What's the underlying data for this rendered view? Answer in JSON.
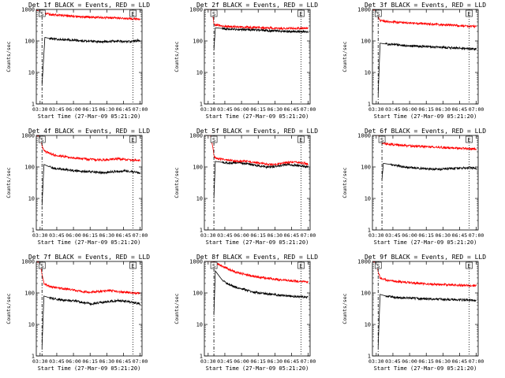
{
  "colors": {
    "events": "#000000",
    "lld": "#ff0000",
    "axes": "#000000",
    "background": "#ffffff"
  },
  "common": {
    "ylabel": "Counts/sec",
    "xlabel": "Start Time (27-Mar-09 05:21:20)",
    "y_scale": "log",
    "ylim": [
      1,
      1000
    ],
    "yticks": [
      "1",
      "10",
      "100",
      "1000"
    ],
    "xlim": [
      "03:22",
      "07:04"
    ],
    "xticks": [
      "03:30",
      "03:45",
      "06:00",
      "06:15",
      "06:30",
      "06:45",
      "07:00"
    ],
    "start_marker": "S",
    "end_marker": "E",
    "end_time": "06:45"
  },
  "chart_data": [
    {
      "type": "line",
      "title": "Det 1f BLACK = Events, RED = LLD",
      "start_time": "03:34",
      "series": [
        {
          "name": "Events",
          "color": "#000000",
          "x": [
            "03:34",
            "03:40",
            "03:50",
            "04:00",
            "04:15",
            "04:30",
            "04:45",
            "05:00",
            "05:15",
            "05:30",
            "05:45",
            "06:00",
            "06:15",
            "06:30",
            "06:45",
            "06:55",
            "07:00"
          ],
          "y": [
            4,
            130,
            120,
            115,
            110,
            108,
            105,
            100,
            98,
            95,
            95,
            97,
            100,
            95,
            95,
            105,
            95
          ]
        },
        {
          "name": "LLD",
          "color": "#ff0000",
          "x": [
            "03:22",
            "03:30",
            "03:34",
            "03:40",
            "03:50",
            "04:00",
            "04:15",
            "04:30",
            "04:45",
            "05:00",
            "05:15",
            "05:30",
            "05:45",
            "06:00",
            "06:15",
            "06:30",
            "06:45",
            "06:55",
            "07:00"
          ],
          "y": [
            950,
            900,
            800,
            750,
            700,
            680,
            650,
            620,
            600,
            580,
            570,
            560,
            550,
            540,
            530,
            520,
            500,
            480,
            470
          ]
        }
      ]
    },
    {
      "type": "line",
      "title": "Det 2f BLACK = Events, RED = LLD",
      "start_time": "03:42",
      "series": [
        {
          "name": "Events",
          "color": "#000000",
          "x": [
            "03:42",
            "03:45",
            "04:00",
            "04:15",
            "04:30",
            "04:45",
            "05:00",
            "05:15",
            "05:30",
            "05:45",
            "06:00",
            "06:15",
            "06:30",
            "06:45",
            "07:00"
          ],
          "y": [
            50,
            260,
            250,
            240,
            235,
            230,
            225,
            220,
            215,
            210,
            205,
            200,
            200,
            200,
            190
          ]
        },
        {
          "name": "LLD",
          "color": "#ff0000",
          "x": [
            "03:22",
            "03:35",
            "03:40",
            "03:42",
            "03:45",
            "04:00",
            "04:15",
            "04:30",
            "04:45",
            "05:00",
            "05:15",
            "05:30",
            "05:45",
            "06:00",
            "06:15",
            "06:30",
            "06:45",
            "07:00"
          ],
          "y": [
            1000,
            1000,
            600,
            360,
            320,
            300,
            290,
            280,
            275,
            270,
            265,
            260,
            255,
            250,
            250,
            250,
            250,
            260
          ]
        }
      ]
    },
    {
      "type": "line",
      "title": "Det 3f BLACK = Events, RED = LLD",
      "start_time": "03:34",
      "series": [
        {
          "name": "Events",
          "color": "#000000",
          "x": [
            "03:34",
            "03:38",
            "03:50",
            "04:00",
            "04:15",
            "04:30",
            "04:45",
            "05:00",
            "05:15",
            "05:30",
            "05:45",
            "06:00",
            "06:15",
            "06:30",
            "06:45",
            "07:00"
          ],
          "y": [
            2,
            85,
            80,
            78,
            75,
            72,
            70,
            68,
            66,
            64,
            63,
            62,
            60,
            58,
            56,
            55
          ]
        },
        {
          "name": "LLD",
          "color": "#ff0000",
          "x": [
            "03:22",
            "03:30",
            "03:34",
            "03:38",
            "03:50",
            "04:00",
            "04:15",
            "04:30",
            "04:45",
            "05:00",
            "05:15",
            "05:30",
            "05:45",
            "06:00",
            "06:15",
            "06:30",
            "06:45",
            "07:00"
          ],
          "y": [
            1000,
            900,
            600,
            450,
            420,
            400,
            390,
            380,
            370,
            360,
            350,
            340,
            330,
            320,
            310,
            300,
            290,
            285
          ]
        }
      ]
    },
    {
      "type": "line",
      "title": "Det 4f BLACK = Events, RED = LLD",
      "start_time": "03:34",
      "series": [
        {
          "name": "Events",
          "color": "#000000",
          "x": [
            "03:34",
            "03:38",
            "03:50",
            "04:00",
            "04:15",
            "04:30",
            "04:45",
            "05:00",
            "05:15",
            "05:30",
            "05:45",
            "06:00",
            "06:15",
            "06:30",
            "06:45",
            "07:00"
          ],
          "y": [
            6,
            120,
            100,
            90,
            85,
            80,
            75,
            72,
            70,
            68,
            66,
            70,
            72,
            75,
            70,
            65
          ]
        },
        {
          "name": "LLD",
          "color": "#ff0000",
          "x": [
            "03:22",
            "03:30",
            "03:34",
            "03:38",
            "03:50",
            "04:00",
            "04:15",
            "04:30",
            "04:45",
            "05:00",
            "05:15",
            "05:30",
            "05:45",
            "06:00",
            "06:15",
            "06:30",
            "06:45",
            "07:00"
          ],
          "y": [
            1000,
            900,
            500,
            320,
            270,
            240,
            220,
            200,
            190,
            180,
            175,
            170,
            170,
            175,
            180,
            170,
            165,
            160
          ]
        }
      ]
    },
    {
      "type": "line",
      "title": "Det 5f BLACK = Events, RED = LLD",
      "start_time": "03:42",
      "series": [
        {
          "name": "Events",
          "color": "#000000",
          "x": [
            "03:42",
            "03:45",
            "04:00",
            "04:15",
            "04:30",
            "04:45",
            "05:00",
            "05:15",
            "05:30",
            "05:45",
            "06:00",
            "06:15",
            "06:30",
            "06:45",
            "07:00"
          ],
          "y": [
            10,
            150,
            140,
            130,
            140,
            130,
            120,
            110,
            100,
            100,
            110,
            120,
            115,
            110,
            100
          ]
        },
        {
          "name": "LLD",
          "color": "#ff0000",
          "x": [
            "03:22",
            "03:35",
            "03:40",
            "03:42",
            "03:45",
            "04:00",
            "04:15",
            "04:30",
            "04:45",
            "05:00",
            "05:15",
            "05:30",
            "05:45",
            "06:00",
            "06:15",
            "06:30",
            "06:45",
            "07:00"
          ],
          "y": [
            1000,
            1000,
            400,
            220,
            190,
            175,
            160,
            150,
            155,
            145,
            135,
            125,
            120,
            125,
            140,
            145,
            135,
            125
          ]
        }
      ]
    },
    {
      "type": "line",
      "title": "Det 6f BLACK = Events, RED = LLD",
      "start_time": "03:42",
      "series": [
        {
          "name": "Events",
          "color": "#000000",
          "x": [
            "03:42",
            "03:45",
            "04:00",
            "04:15",
            "04:30",
            "04:45",
            "05:00",
            "05:15",
            "05:30",
            "05:45",
            "06:00",
            "06:15",
            "06:30",
            "06:45",
            "07:00"
          ],
          "y": [
            40,
            130,
            120,
            110,
            100,
            95,
            90,
            88,
            85,
            85,
            88,
            90,
            92,
            95,
            90
          ]
        },
        {
          "name": "LLD",
          "color": "#ff0000",
          "x": [
            "03:22",
            "03:35",
            "03:40",
            "03:42",
            "03:45",
            "04:00",
            "04:15",
            "04:30",
            "04:45",
            "05:00",
            "05:15",
            "05:30",
            "05:45",
            "06:00",
            "06:15",
            "06:30",
            "06:45",
            "07:00"
          ],
          "y": [
            1000,
            1000,
            700,
            600,
            560,
            520,
            500,
            480,
            460,
            450,
            440,
            430,
            420,
            410,
            400,
            390,
            380,
            370
          ]
        }
      ]
    },
    {
      "type": "line",
      "title": "Det 7f BLACK = Events, RED = LLD",
      "start_time": "03:34",
      "series": [
        {
          "name": "Events",
          "color": "#000000",
          "x": [
            "03:34",
            "03:38",
            "03:50",
            "04:00",
            "04:15",
            "04:30",
            "04:45",
            "05:00",
            "05:15",
            "05:30",
            "05:45",
            "06:00",
            "06:15",
            "06:30",
            "06:45",
            "07:00"
          ],
          "y": [
            2,
            80,
            70,
            65,
            60,
            58,
            55,
            50,
            45,
            48,
            52,
            55,
            58,
            55,
            50,
            45
          ]
        },
        {
          "name": "LLD",
          "color": "#ff0000",
          "x": [
            "03:22",
            "03:30",
            "03:34",
            "03:38",
            "03:50",
            "04:00",
            "04:15",
            "04:30",
            "04:45",
            "05:00",
            "05:15",
            "05:30",
            "05:45",
            "06:00",
            "06:15",
            "06:30",
            "06:45",
            "07:00"
          ],
          "y": [
            1000,
            900,
            400,
            200,
            160,
            150,
            140,
            130,
            120,
            110,
            105,
            110,
            115,
            120,
            110,
            105,
            100,
            95
          ]
        }
      ]
    },
    {
      "type": "line",
      "title": "Det 8f BLACK = Events, RED = LLD",
      "start_time": "03:42",
      "series": [
        {
          "name": "Events",
          "color": "#000000",
          "x": [
            "03:42",
            "03:45",
            "04:00",
            "04:15",
            "04:30",
            "04:45",
            "05:00",
            "05:15",
            "05:30",
            "05:45",
            "06:00",
            "06:15",
            "06:30",
            "06:45",
            "07:00"
          ],
          "y": [
            20,
            500,
            250,
            180,
            150,
            130,
            110,
            100,
            95,
            90,
            85,
            80,
            78,
            76,
            75
          ]
        },
        {
          "name": "LLD",
          "color": "#ff0000",
          "x": [
            "03:22",
            "03:35",
            "03:40",
            "03:42",
            "03:45",
            "04:00",
            "04:15",
            "04:30",
            "04:45",
            "05:00",
            "05:15",
            "05:30",
            "05:45",
            "06:00",
            "06:15",
            "06:30",
            "06:45",
            "07:00"
          ],
          "y": [
            1000,
            1000,
            1000,
            1000,
            900,
            700,
            550,
            450,
            400,
            350,
            320,
            300,
            280,
            260,
            250,
            240,
            230,
            220
          ]
        }
      ]
    },
    {
      "type": "line",
      "title": "Det 9f BLACK = Events, RED = LLD",
      "start_time": "03:34",
      "series": [
        {
          "name": "Events",
          "color": "#000000",
          "x": [
            "03:34",
            "03:38",
            "03:50",
            "04:00",
            "04:15",
            "04:30",
            "04:45",
            "05:00",
            "05:15",
            "05:30",
            "05:45",
            "06:00",
            "06:15",
            "06:30",
            "06:45",
            "07:00"
          ],
          "y": [
            2,
            90,
            80,
            75,
            72,
            70,
            68,
            66,
            65,
            64,
            63,
            62,
            62,
            60,
            60,
            58
          ]
        },
        {
          "name": "LLD",
          "color": "#ff0000",
          "x": [
            "03:22",
            "03:30",
            "03:34",
            "03:38",
            "03:50",
            "04:00",
            "04:15",
            "04:30",
            "04:45",
            "05:00",
            "05:15",
            "05:30",
            "05:45",
            "06:00",
            "06:15",
            "06:30",
            "06:45",
            "07:00"
          ],
          "y": [
            1000,
            900,
            500,
            300,
            260,
            240,
            230,
            220,
            210,
            200,
            195,
            190,
            185,
            180,
            178,
            175,
            172,
            170
          ]
        }
      ]
    }
  ]
}
